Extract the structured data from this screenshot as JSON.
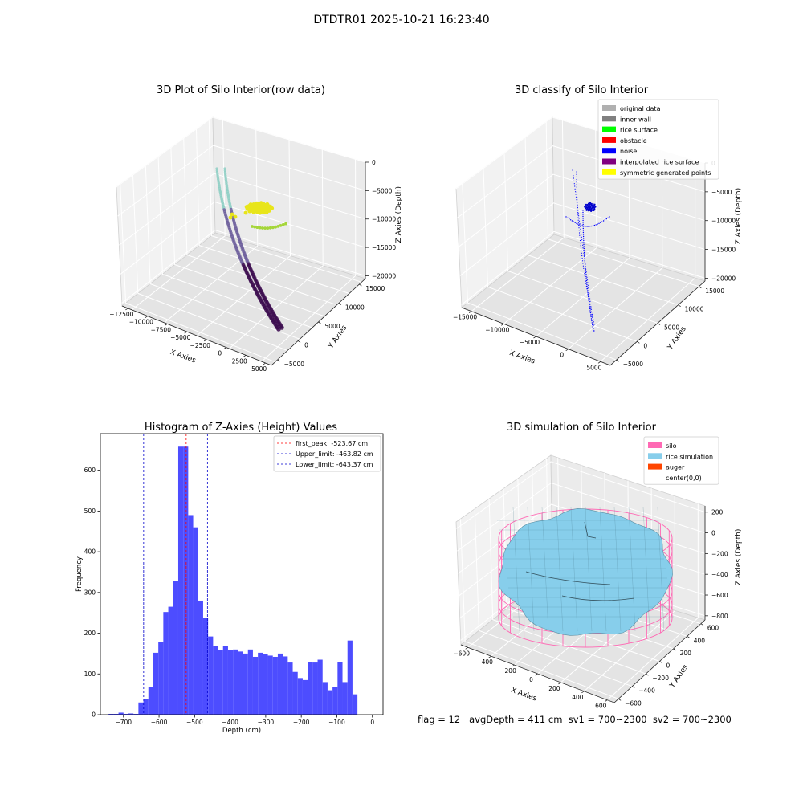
{
  "figure": {
    "suptitle": "DTDTR01 2025-10-21 16:23:40",
    "status_line": "flag = 12   avgDepth = 411 cm  sv1 = 700~2300  sv2 = 700~2300",
    "colors": {
      "hist_bar": "#4d4dff",
      "peak_line": "#ff0000",
      "limit_line": "#0000cc",
      "silo": "#ff69b4",
      "rice_sim": "#87ceeb",
      "auger": "#ff4500",
      "raw_dark": "#3b0b4d",
      "raw_mid": "#6d5f9c",
      "raw_light": "#8ecfc4",
      "surface_yellow": "#e8e51a",
      "surface_green": "#a5d63a"
    }
  },
  "chart_data": [
    {
      "type": "scatter3d",
      "title": "3D Plot of Silo Interior(row data)",
      "xlabel": "X Axies",
      "ylabel": "Y Axies",
      "zlabel": "Z Axies (Depth)",
      "x_ticks": [
        "−12500",
        "−10000",
        "−7500",
        "−5000",
        "−2500",
        "0",
        "2500",
        "5000"
      ],
      "y_ticks": [
        "−5000",
        "0",
        "5000",
        "10000",
        "15000"
      ],
      "z_ticks": [
        "0",
        "−5000",
        "−10000",
        "−15000",
        "−20000"
      ]
    },
    {
      "type": "scatter3d",
      "title": "3D classify of Silo Interior",
      "xlabel": "X Axies",
      "ylabel": "Y Axies",
      "zlabel": "Z Axies (Depth)",
      "x_ticks": [
        "−15000",
        "−10000",
        "−5000",
        "0",
        "5000"
      ],
      "y_ticks": [
        "−5000",
        "0",
        "5000",
        "10000",
        "15000"
      ],
      "z_ticks": [
        "0",
        "−5000",
        "−10000",
        "−15000",
        "−20000"
      ],
      "legend": {
        "placement": "top-right",
        "items": [
          {
            "label": "original data",
            "color": "#b0b0b0"
          },
          {
            "label": "inner wall",
            "color": "#808080"
          },
          {
            "label": "rice surface",
            "color": "#00ff00"
          },
          {
            "label": "obstacle",
            "color": "#ff0000"
          },
          {
            "label": "noise",
            "color": "#0000ff"
          },
          {
            "label": "interpolated rice surface",
            "color": "#800080"
          },
          {
            "label": "symmetric generated points",
            "color": "#ffff00"
          }
        ]
      }
    },
    {
      "type": "bar",
      "title": "Histogram of Z-Axies (Height) Values",
      "xlabel": "Depth (cm)",
      "ylabel": "Frequency",
      "xlim": [
        -765,
        30
      ],
      "ylim": [
        0,
        690
      ],
      "x_ticks": [
        -700,
        -600,
        -500,
        -400,
        -300,
        -200,
        -100,
        0
      ],
      "y_ticks": [
        0,
        100,
        200,
        300,
        400,
        500,
        600
      ],
      "bin_width": 14,
      "bin_starts": [
        -742,
        -728,
        -714,
        -700,
        -686,
        -672,
        -658,
        -644,
        -630,
        -616,
        -602,
        -588,
        -574,
        -560,
        -546,
        -532,
        -518,
        -504,
        -490,
        -476,
        -462,
        -448,
        -434,
        -420,
        -406,
        -392,
        -378,
        -364,
        -350,
        -336,
        -322,
        -308,
        -294,
        -280,
        -266,
        -252,
        -238,
        -224,
        -210,
        -196,
        -182,
        -168,
        -154,
        -140,
        -126,
        -112,
        -98,
        -84,
        -70,
        -56,
        -42,
        -28,
        -14
      ],
      "values": [
        2,
        2,
        5,
        2,
        3,
        2,
        30,
        38,
        68,
        152,
        178,
        252,
        265,
        328,
        658,
        658,
        490,
        460,
        280,
        238,
        192,
        168,
        158,
        168,
        158,
        160,
        155,
        150,
        160,
        142,
        152,
        148,
        145,
        142,
        150,
        143,
        128,
        105,
        90,
        85,
        130,
        128,
        135,
        80,
        60,
        68,
        130,
        80,
        182,
        50,
        0,
        0,
        0
      ],
      "reference_lines": [
        {
          "label": "first_peak: -523.67 cm",
          "x": -523.67,
          "color": "#ff0000"
        },
        {
          "label": "Upper_limit: -463.82 cm",
          "x": -463.82,
          "color": "#0000cc"
        },
        {
          "label": "Lower_limit: -643.37 cm",
          "x": -643.37,
          "color": "#0000cc"
        }
      ],
      "legend_placement": "top-right"
    },
    {
      "type": "surface3d",
      "title": "3D simulation of Silo Interior",
      "xlabel": "X Axies",
      "ylabel": "Y Axies",
      "zlabel": "Z Axies (Depth)",
      "x_ticks": [
        "−600",
        "−400",
        "−200",
        "0",
        "200",
        "400",
        "600"
      ],
      "y_ticks": [
        "−600",
        "−400",
        "−200",
        "0",
        "200",
        "400",
        "600"
      ],
      "z_ticks": [
        "200",
        "0",
        "−200",
        "−400",
        "−600",
        "−800"
      ],
      "legend": {
        "placement": "top-right",
        "items": [
          {
            "label": "silo",
            "color": "#ff69b4"
          },
          {
            "label": "rice simulation",
            "color": "#87ceeb"
          },
          {
            "label": "auger",
            "color": "#ff4500"
          },
          {
            "label": "center(0,0)",
            "color": ""
          }
        ]
      }
    }
  ]
}
